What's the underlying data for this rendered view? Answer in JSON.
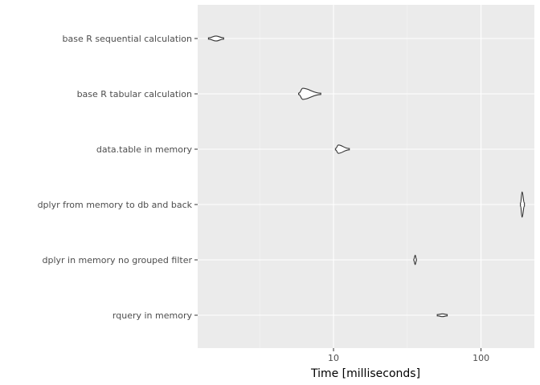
{
  "chart_data": {
    "type": "violin",
    "orientation": "horizontal",
    "xlabel": "Time [milliseconds]",
    "ylabel": "",
    "x_scale": "log10",
    "xlim": [
      1.2,
      230
    ],
    "x_ticks": [
      10,
      100
    ],
    "x_tick_labels": [
      "10",
      "100"
    ],
    "x_minor_ticks": [
      3.16,
      31.6
    ],
    "grid": true,
    "legend": "none",
    "categories": [
      "base R sequential calculation",
      "base R tabular calculation",
      "data.table in memory",
      "dplyr from memory to db and back",
      "dplyr in memory no grouped filter",
      "rquery in memory"
    ],
    "series": [
      {
        "distributions": [
          {
            "min": 1.42,
            "mode": 1.6,
            "max": 1.8,
            "half_width": 0.09
          },
          {
            "min": 5.8,
            "mode": 6.2,
            "max": 8.2,
            "half_width": 0.2
          },
          {
            "min": 10.3,
            "mode": 10.8,
            "max": 12.8,
            "half_width": 0.15
          },
          {
            "min": 185,
            "mode": 190,
            "max": 197,
            "half_width": 0.46
          },
          {
            "min": 35.0,
            "mode": 35.8,
            "max": 36.5,
            "half_width": 0.17
          },
          {
            "min": 50.5,
            "mode": 55.0,
            "max": 59.0,
            "half_width": 0.05
          }
        ]
      }
    ],
    "colors": {
      "panel": "#ebebeb",
      "grid_major": "#ffffff",
      "grid_minor": "#f5f5f5",
      "violin_stroke": "#333333",
      "violin_fill": "#ffffff"
    }
  }
}
